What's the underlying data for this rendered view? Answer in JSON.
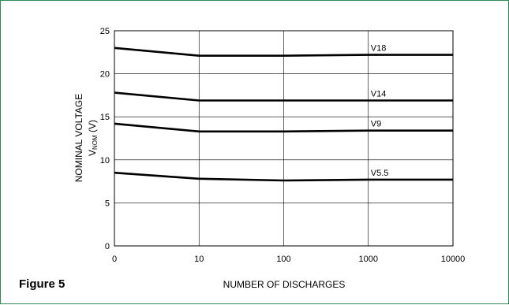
{
  "figure_label": "Figure 5",
  "chart_data": {
    "type": "line",
    "x_axis": {
      "label": "NUMBER OF DISCHARGES",
      "scale": "log",
      "ticks": [
        0,
        10,
        100,
        1000,
        10000
      ]
    },
    "y_axis": {
      "label": "NOMINAL VOLTAGE",
      "label_line2_prefix": "V",
      "label_line2_sub": "NOM",
      "label_line2_suffix": " (V)",
      "ylim": [
        0,
        25
      ],
      "ticks": [
        0,
        5,
        10,
        15,
        20,
        25
      ]
    },
    "grid": true,
    "series": [
      {
        "name": "V18",
        "x": [
          0,
          10,
          100,
          1000,
          10000
        ],
        "y": [
          23.0,
          22.1,
          22.1,
          22.2,
          22.2
        ]
      },
      {
        "name": "V14",
        "x": [
          0,
          10,
          100,
          1000,
          10000
        ],
        "y": [
          17.8,
          16.9,
          16.9,
          16.9,
          16.9
        ]
      },
      {
        "name": "V9",
        "x": [
          0,
          10,
          100,
          1000,
          10000
        ],
        "y": [
          14.2,
          13.3,
          13.3,
          13.4,
          13.4
        ]
      },
      {
        "name": "V5.5",
        "x": [
          0,
          10,
          100,
          1000,
          10000
        ],
        "y": [
          8.5,
          7.8,
          7.6,
          7.7,
          7.7
        ]
      }
    ]
  }
}
